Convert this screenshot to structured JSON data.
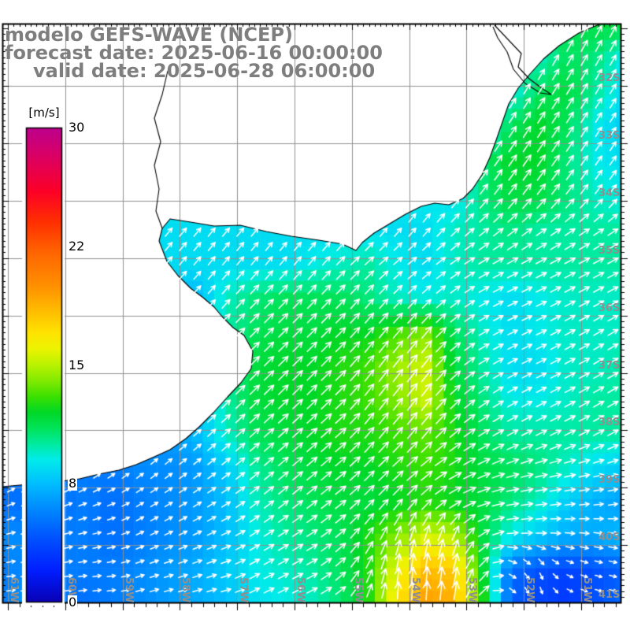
{
  "header": {
    "line1": "modelo GEFS-WAVE (NCEP)",
    "line2": "forecast date: 2025-06-16 00:00:00",
    "line3": "valid date: 2025-06-28 06:00:00",
    "text_color": "#7e7e7e"
  },
  "colorbar": {
    "unit_label": "[m/s]",
    "min": 0,
    "max": 30,
    "ticks": [
      {
        "label": "30",
        "value": 30
      },
      {
        "label": "22",
        "value": 22.5
      },
      {
        "label": "15",
        "value": 15
      },
      {
        "label": "8",
        "value": 7.5
      },
      {
        "label": "0",
        "value": 0
      }
    ]
  },
  "map": {
    "grid_color": "#8f8f8f",
    "label_color": "#8f8f8f",
    "coast_color": "#000000",
    "arrow_color": "#ffffff",
    "lon_labels": [
      {
        "text": "61W",
        "deg": -61
      },
      {
        "text": "60W",
        "deg": -60
      },
      {
        "text": "59W",
        "deg": -59
      },
      {
        "text": "58W",
        "deg": -58
      },
      {
        "text": "57W",
        "deg": -57
      },
      {
        "text": "56W",
        "deg": -56
      },
      {
        "text": "55W",
        "deg": -55
      },
      {
        "text": "54W",
        "deg": -54
      },
      {
        "text": "53W",
        "deg": -53
      },
      {
        "text": "52W",
        "deg": -52
      },
      {
        "text": "51W",
        "deg": -51
      }
    ],
    "lat_labels": [
      {
        "text": "32S",
        "deg": -32
      },
      {
        "text": "33S",
        "deg": -33
      },
      {
        "text": "34S",
        "deg": -34
      },
      {
        "text": "35S",
        "deg": -35
      },
      {
        "text": "36S",
        "deg": -36
      },
      {
        "text": "37S",
        "deg": -37
      },
      {
        "text": "38S",
        "deg": -38
      },
      {
        "text": "39S",
        "deg": -39
      },
      {
        "text": "40S",
        "deg": -40
      },
      {
        "text": "41S",
        "deg": -41
      }
    ]
  },
  "chart_data": {
    "type": "heatmap",
    "units": "m/s",
    "palette_stops": [
      [
        0,
        10,
        0,
        180
      ],
      [
        2,
        0,
        30,
        255
      ],
      [
        4,
        0,
        80,
        255
      ],
      [
        6,
        0,
        140,
        255
      ],
      [
        7.5,
        0,
        190,
        255
      ],
      [
        9,
        0,
        235,
        235
      ],
      [
        10,
        0,
        235,
        160
      ],
      [
        11,
        0,
        228,
        90
      ],
      [
        12,
        0,
        216,
        40
      ],
      [
        13,
        60,
        224,
        0
      ],
      [
        14,
        130,
        234,
        0
      ],
      [
        15,
        185,
        242,
        0
      ],
      [
        16,
        235,
        244,
        0
      ],
      [
        17,
        255,
        228,
        0
      ],
      [
        18,
        255,
        200,
        0
      ],
      [
        19,
        255,
        172,
        0
      ],
      [
        20,
        255,
        144,
        0
      ],
      [
        22,
        255,
        104,
        0
      ],
      [
        24,
        255,
        48,
        0
      ],
      [
        26,
        252,
        0,
        40
      ],
      [
        28,
        222,
        0,
        95
      ],
      [
        30,
        188,
        0,
        142
      ]
    ],
    "field": {
      "lon_start": -61.15,
      "lon_end": -50.25,
      "lat_start": -30.92,
      "lat_end": -41.03,
      "values": [
        [
          11,
          11,
          11,
          11,
          11,
          11,
          11,
          11,
          11,
          11,
          11,
          11,
          11,
          11,
          11,
          11,
          11,
          11,
          11,
          11,
          11,
          11.5,
          11.5
        ],
        [
          11,
          11,
          11,
          11,
          11,
          11,
          11,
          11,
          11,
          11,
          11,
          11,
          11,
          11,
          11,
          11,
          11,
          11,
          11,
          9.5,
          11,
          10.5,
          9
        ],
        [
          11,
          11,
          11,
          11,
          11,
          11,
          11,
          11,
          11,
          11,
          11,
          11,
          11,
          11,
          11,
          11,
          11,
          10,
          9,
          11,
          11.5,
          10,
          8.5
        ],
        [
          10.5,
          10.5,
          10.5,
          10.5,
          10.5,
          10.5,
          10.5,
          10.5,
          10.5,
          10.5,
          10.5,
          10.5,
          10.5,
          10.5,
          10.5,
          10.5,
          10,
          8.5,
          11,
          12,
          11,
          9,
          8
        ],
        [
          10,
          10,
          10,
          10,
          10,
          10,
          10,
          10,
          10,
          10,
          10,
          10,
          10,
          10,
          10,
          10,
          8.5,
          10.5,
          12,
          12,
          10.5,
          9,
          8.5
        ],
        [
          9,
          9,
          9,
          9,
          9,
          9,
          9,
          9,
          9,
          9,
          9,
          9,
          9,
          9,
          9,
          9,
          8.5,
          10.5,
          11.5,
          11.5,
          10.5,
          9.5,
          9
        ],
        [
          8.5,
          8.5,
          8.5,
          8.5,
          8.5,
          8.5,
          8.5,
          8.5,
          8.5,
          8.5,
          8.5,
          8.5,
          8.5,
          8.5,
          8.5,
          8.5,
          9.5,
          10,
          10.5,
          10,
          10,
          10,
          10
        ],
        [
          8.5,
          8.5,
          8.5,
          8.5,
          8.5,
          8.5,
          8.5,
          8.5,
          8.5,
          8.5,
          8.5,
          9,
          9.5,
          10,
          9,
          8.5,
          9.5,
          10,
          10,
          10,
          10,
          10,
          10
        ],
        [
          7.5,
          7.5,
          7.5,
          7.5,
          7.5,
          7.5,
          7.5,
          7.5,
          9.5,
          10.5,
          11,
          11,
          11,
          10.5,
          9.5,
          9,
          9.5,
          9,
          8.5,
          9,
          9.5,
          9.5,
          9.5
        ],
        [
          7,
          7,
          7,
          7,
          7,
          7,
          6.5,
          7.5,
          10,
          11,
          11.5,
          11.5,
          12,
          12,
          13,
          14,
          11,
          9.5,
          8.5,
          9,
          9.5,
          9.5,
          9.5
        ],
        [
          7,
          7,
          7,
          7,
          7,
          7,
          6.5,
          7,
          10,
          11.5,
          12,
          12,
          12.5,
          13,
          14.5,
          15.5,
          11.5,
          10,
          8.5,
          8.5,
          9.5,
          9.5,
          10
        ],
        [
          7,
          7,
          7,
          7,
          7,
          7,
          6.5,
          7.5,
          10,
          11.5,
          12,
          12,
          12.5,
          13,
          14,
          15.5,
          12,
          10.5,
          9,
          9,
          9.5,
          10,
          10
        ],
        [
          6,
          6,
          6,
          6,
          6,
          6,
          6.5,
          7.5,
          9.5,
          11,
          11.5,
          12,
          12.5,
          12.5,
          13,
          13.5,
          12.5,
          11,
          10,
          10,
          10,
          10,
          10
        ],
        [
          5.5,
          5.5,
          5.5,
          5.5,
          5.5,
          6,
          6,
          6.5,
          8,
          10,
          11,
          11.5,
          12,
          12,
          12.5,
          13,
          12.5,
          11.5,
          11,
          10.5,
          9.5,
          8.5,
          8
        ],
        [
          5,
          5,
          5,
          5.5,
          5,
          5.5,
          6,
          6.5,
          7.5,
          9.5,
          10.5,
          11,
          11.5,
          11.5,
          12,
          12.5,
          12,
          11.5,
          10.5,
          9.5,
          8,
          7,
          6.5
        ],
        [
          6,
          6,
          5.5,
          5.5,
          5,
          5.5,
          6,
          6.5,
          7.5,
          9,
          10,
          10.5,
          11,
          12.5,
          14,
          15.5,
          15,
          11.5,
          9,
          8,
          7,
          7,
          7.5
        ],
        [
          5.5,
          6,
          5.5,
          5.5,
          5.5,
          6,
          6.5,
          7,
          8,
          9,
          9.5,
          10,
          11,
          12.5,
          16,
          18.5,
          18,
          12,
          5,
          4,
          3.5,
          4,
          4.5
        ],
        [
          5.5,
          6.5,
          5.5,
          5,
          5.5,
          6,
          6.5,
          7,
          7.5,
          8.5,
          9,
          9.5,
          10.5,
          12.5,
          17,
          19.5,
          19,
          13,
          4.5,
          3.5,
          3,
          4,
          5
        ]
      ],
      "directions_deg": [
        [
          62,
          62,
          62,
          62,
          62,
          62,
          62,
          62,
          62,
          62,
          62,
          62,
          62,
          62,
          62,
          62,
          62,
          62,
          62,
          62,
          62,
          62,
          62
        ],
        [
          60,
          60,
          60,
          60,
          60,
          60,
          60,
          60,
          60,
          60,
          60,
          60,
          60,
          60,
          60,
          60,
          60,
          60,
          60,
          60,
          60,
          60,
          60
        ],
        [
          58,
          58,
          58,
          58,
          58,
          58,
          58,
          58,
          58,
          58,
          58,
          58,
          58,
          58,
          58,
          58,
          58,
          58,
          58,
          58,
          58,
          58,
          58
        ],
        [
          57,
          57,
          57,
          57,
          57,
          57,
          57,
          57,
          57,
          57,
          57,
          57,
          57,
          57,
          57,
          57,
          57,
          57,
          57,
          57,
          57,
          57,
          57
        ],
        [
          55,
          55,
          55,
          55,
          55,
          55,
          55,
          55,
          55,
          55,
          55,
          55,
          55,
          55,
          55,
          55,
          55,
          55,
          55,
          55,
          55,
          55,
          55
        ],
        [
          52,
          52,
          52,
          52,
          52,
          52,
          52,
          52,
          52,
          52,
          52,
          52,
          52,
          52,
          52,
          52,
          52,
          52,
          52,
          52,
          52,
          52,
          52
        ],
        [
          50,
          50,
          50,
          50,
          50,
          50,
          50,
          50,
          50,
          50,
          50,
          50,
          50,
          50,
          50,
          50,
          45,
          40,
          38,
          36,
          35,
          34,
          33
        ],
        [
          50,
          50,
          50,
          50,
          50,
          50,
          50,
          50,
          50,
          50,
          50,
          50,
          45,
          42,
          40,
          38,
          35,
          30,
          28,
          28,
          28,
          28,
          28
        ],
        [
          48,
          48,
          48,
          48,
          48,
          48,
          48,
          48,
          48,
          46,
          46,
          46,
          46,
          48,
          46,
          44,
          38,
          30,
          26,
          26,
          28,
          28,
          28
        ],
        [
          45,
          45,
          45,
          45,
          45,
          45,
          45,
          45,
          45,
          45,
          45,
          45,
          45,
          50,
          50,
          50,
          40,
          30,
          26,
          26,
          28,
          30,
          30
        ],
        [
          45,
          45,
          45,
          45,
          45,
          45,
          45,
          45,
          45,
          45,
          45,
          45,
          45,
          52,
          52,
          52,
          42,
          32,
          28,
          26,
          28,
          30,
          30
        ],
        [
          44,
          44,
          44,
          44,
          44,
          44,
          44,
          44,
          44,
          44,
          44,
          44,
          44,
          52,
          52,
          52,
          45,
          35,
          30,
          28,
          28,
          30,
          30
        ],
        [
          42,
          42,
          42,
          42,
          42,
          42,
          42,
          42,
          42,
          42,
          42,
          42,
          42,
          50,
          50,
          50,
          40,
          32,
          28,
          26,
          26,
          28,
          28
        ],
        [
          38,
          38,
          38,
          38,
          38,
          38,
          38,
          38,
          38,
          40,
          40,
          40,
          40,
          45,
          42,
          38,
          30,
          25,
          18,
          15,
          14,
          14,
          15
        ],
        [
          22,
          22,
          22,
          22,
          22,
          32,
          32,
          32,
          32,
          38,
          38,
          38,
          38,
          45,
          48,
          45,
          30,
          18,
          10,
          8,
          8,
          8,
          10
        ],
        [
          12,
          12,
          12,
          12,
          12,
          25,
          25,
          25,
          25,
          32,
          32,
          32,
          40,
          55,
          70,
          75,
          70,
          35,
          5,
          0,
          -5,
          -8,
          -8
        ],
        [
          8,
          8,
          8,
          8,
          8,
          18,
          18,
          18,
          18,
          28,
          28,
          28,
          40,
          65,
          82,
          85,
          80,
          55,
          -25,
          -65,
          -25,
          -15,
          -12
        ],
        [
          6,
          6,
          6,
          6,
          6,
          15,
          15,
          15,
          15,
          25,
          25,
          25,
          35,
          70,
          88,
          88,
          85,
          45,
          -40,
          -80,
          -30,
          -18,
          -12
        ]
      ]
    }
  },
  "geometry": {
    "coast": [
      [
        3,
        30
      ],
      [
        763,
        30
      ],
      [
        735,
        42
      ],
      [
        710,
        58
      ],
      [
        690,
        75
      ],
      [
        672,
        95
      ],
      [
        658,
        112
      ],
      [
        646,
        132
      ],
      [
        638,
        155
      ],
      [
        630,
        178
      ],
      [
        622,
        200
      ],
      [
        612,
        222
      ],
      [
        600,
        240
      ],
      [
        588,
        252
      ],
      [
        570,
        260
      ],
      [
        552,
        258
      ],
      [
        535,
        262
      ],
      [
        515,
        272
      ],
      [
        495,
        284
      ],
      [
        475,
        296
      ],
      [
        460,
        308
      ],
      [
        452,
        318
      ],
      [
        435,
        310
      ],
      [
        405,
        305
      ],
      [
        370,
        300
      ],
      [
        338,
        294
      ],
      [
        305,
        286
      ],
      [
        272,
        287
      ],
      [
        242,
        282
      ],
      [
        216,
        278
      ],
      [
        206,
        290
      ],
      [
        202,
        306
      ],
      [
        212,
        332
      ],
      [
        226,
        350
      ],
      [
        242,
        366
      ],
      [
        258,
        378
      ],
      [
        272,
        390
      ],
      [
        282,
        402
      ],
      [
        296,
        416
      ],
      [
        310,
        426
      ],
      [
        321,
        446
      ],
      [
        319,
        468
      ],
      [
        306,
        486
      ],
      [
        289,
        504
      ],
      [
        271,
        524
      ],
      [
        253,
        542
      ],
      [
        236,
        557
      ],
      [
        216,
        571
      ],
      [
        196,
        580
      ],
      [
        173,
        590
      ],
      [
        151,
        597
      ],
      [
        126,
        602
      ],
      [
        101,
        608
      ],
      [
        71,
        612
      ],
      [
        36,
        615
      ],
      [
        3,
        618
      ]
    ],
    "rivers": [
      [
        [
          213,
          90
        ],
        [
          206,
          120
        ],
        [
          196,
          150
        ],
        [
          204,
          180
        ],
        [
          196,
          210
        ],
        [
          202,
          240
        ],
        [
          198,
          268
        ],
        [
          206,
          290
        ]
      ],
      [
        [
          628,
          32
        ],
        [
          645,
          50
        ],
        [
          662,
          68
        ],
        [
          658,
          85
        ],
        [
          672,
          100
        ],
        [
          688,
          112
        ],
        [
          700,
          120
        ],
        [
          686,
          118
        ],
        [
          667,
          106
        ],
        [
          652,
          88
        ],
        [
          644,
          66
        ],
        [
          632,
          48
        ],
        [
          626,
          34
        ]
      ]
    ]
  }
}
